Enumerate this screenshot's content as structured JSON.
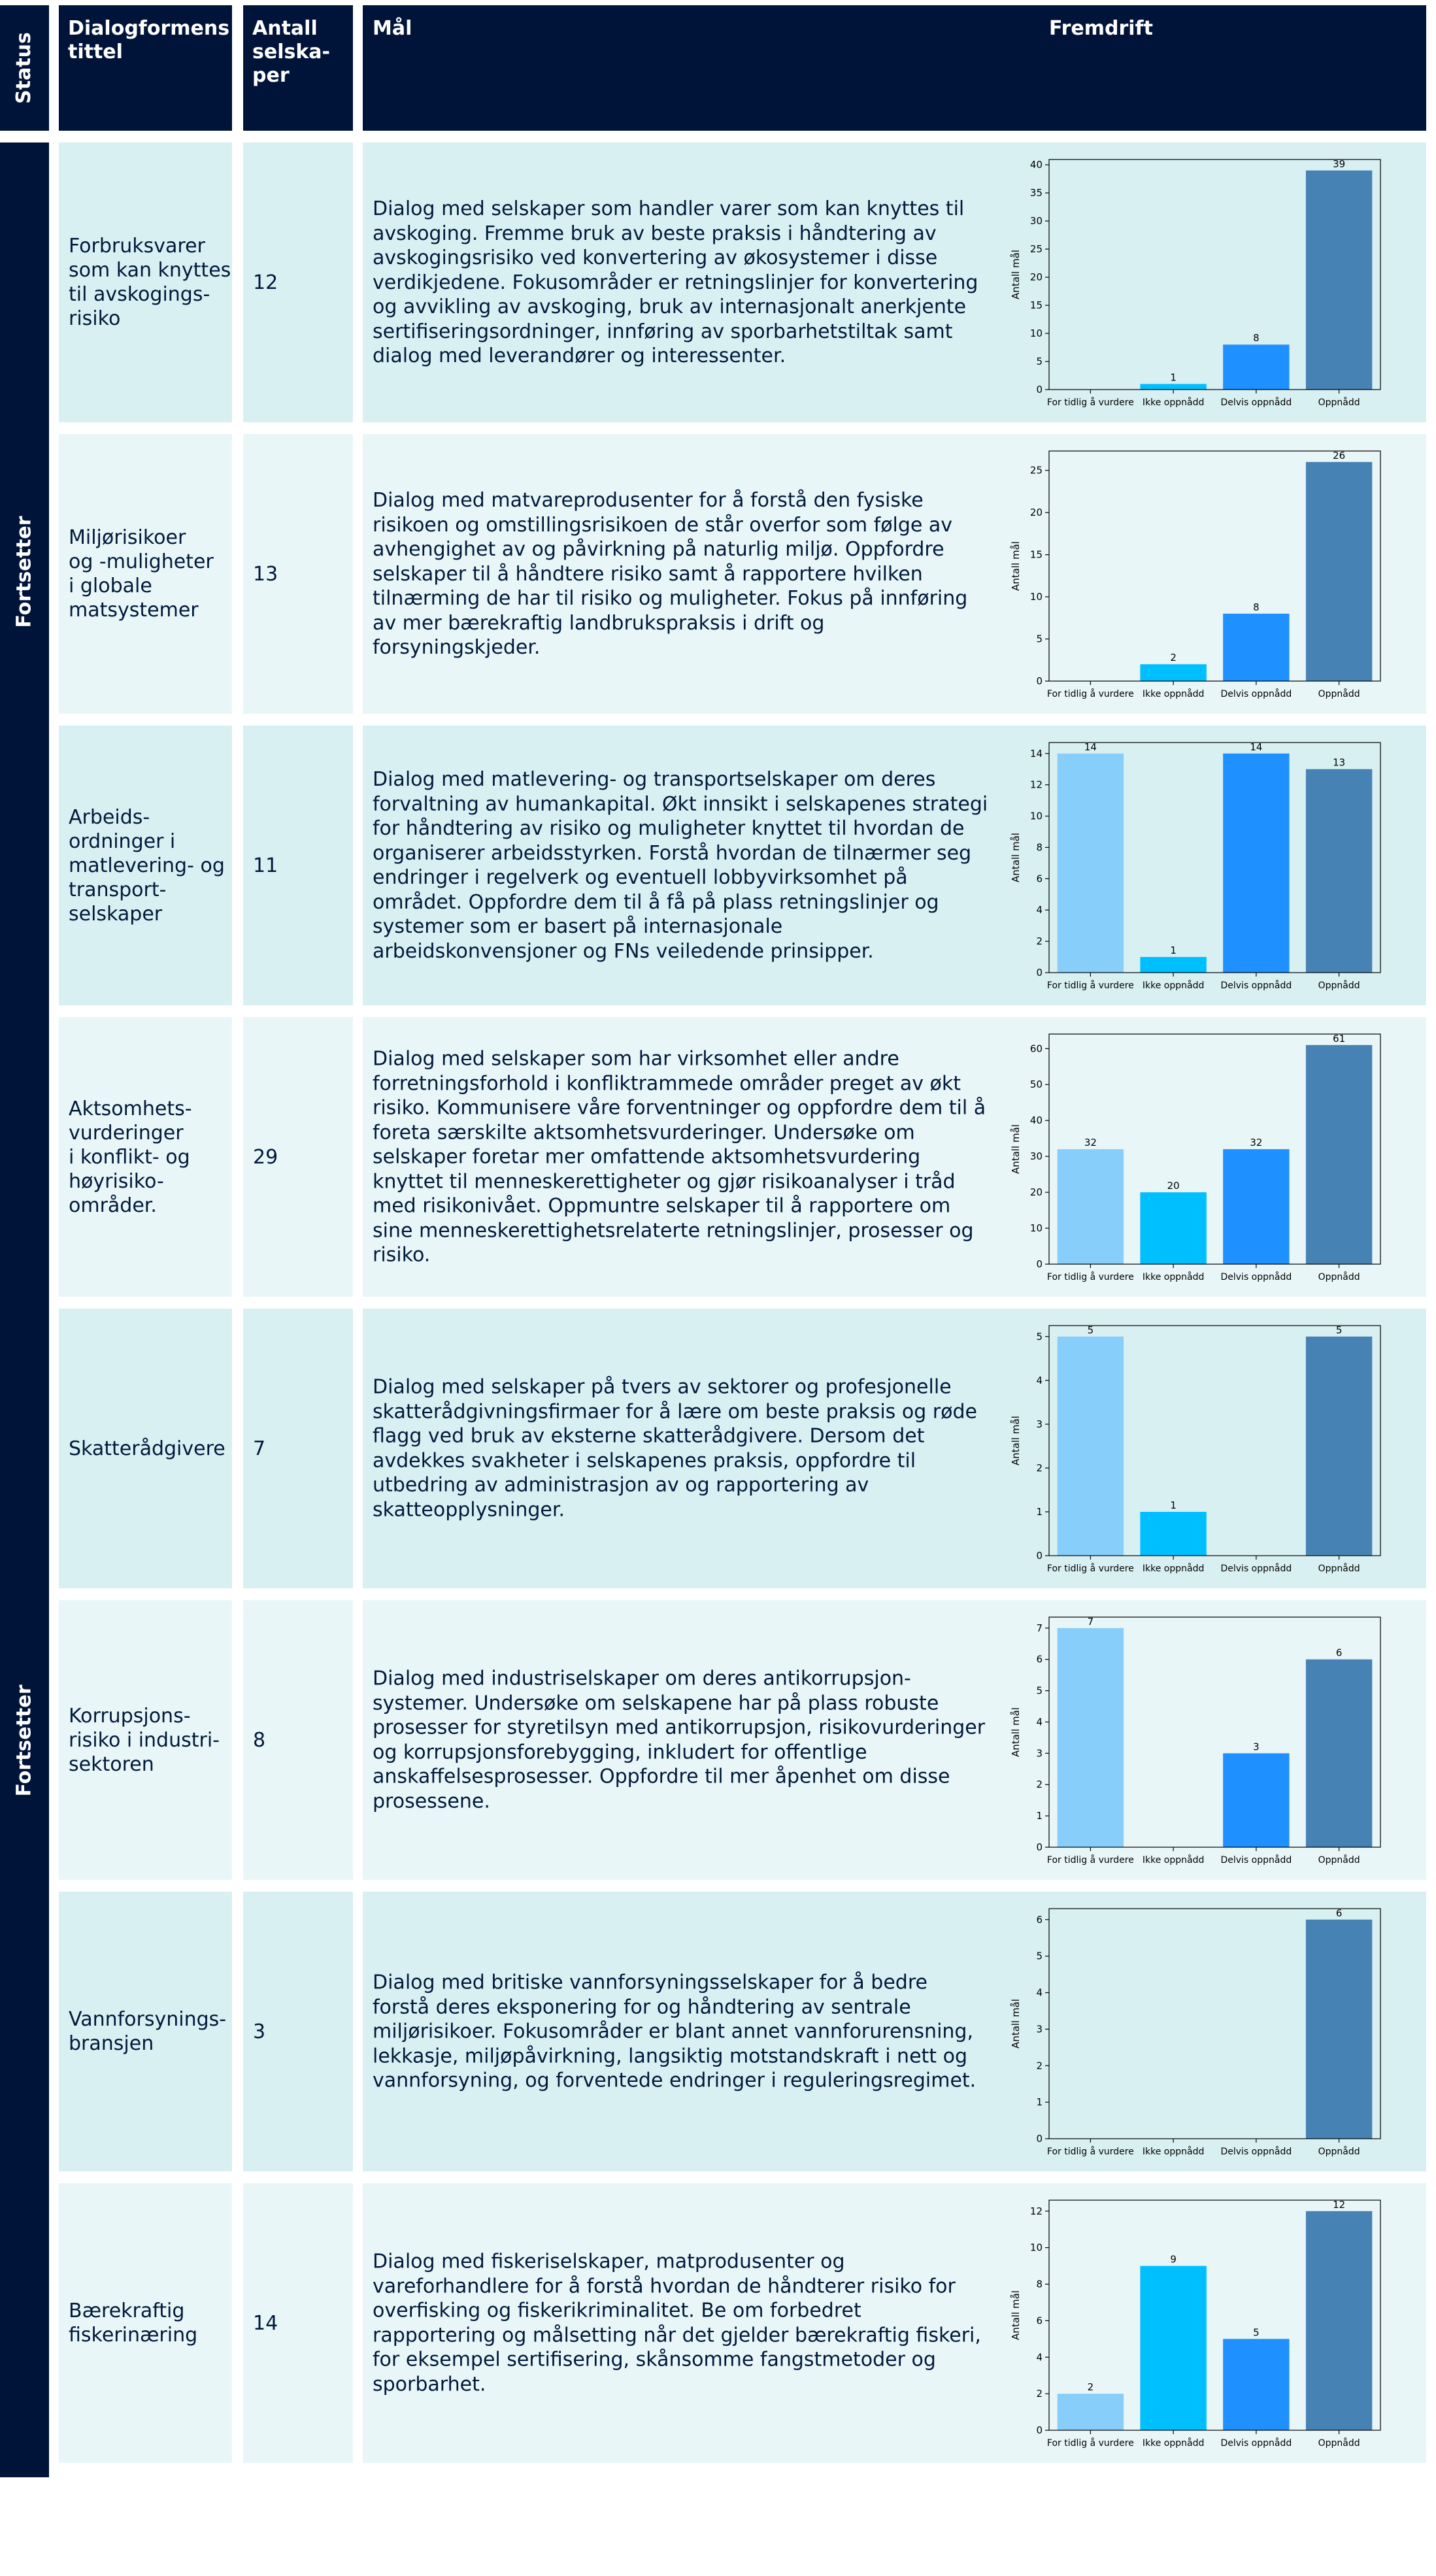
{
  "header": {
    "status": "Status",
    "title": "Dialogformens\ntittel",
    "count": "Antall\nselska-\nper",
    "goal": "Mål",
    "progress": "Fremdrift"
  },
  "status_labels": [
    "Fortsetter",
    "Fortsetter"
  ],
  "chart_colors": [
    "#87cefa",
    "#00bfff",
    "#1e90ff",
    "#4682b4"
  ],
  "rows": [
    {
      "title": "Forbruksvarer\nsom kan knyttes\ntil avskogings-\nrisiko",
      "count": 12,
      "goal": "Dialog med selskaper som handler varer som kan knyttes til avskoging. Fremme bruk av beste praksis i håndtering av avskogingsrisiko ved konvertering av økosystemer i disse verdikjedene. Fokusområder er retningslinjer for konvertering og avvikling av avskoging, bruk av internasjonalt anerkjente sertifiseringsordninger, innføring av sporbarhetstiltak samt dialog med leverandører og interessenter.",
      "chart": {
        "type": "bar",
        "ylabel": "Antall mål",
        "categories": [
          "For tidlig å vurdere",
          "Ikke oppnådd",
          "Delvis oppnådd",
          "Oppnådd"
        ],
        "values": [
          0,
          1,
          8,
          39
        ],
        "ylim": [
          0,
          40.95
        ],
        "yticks": [
          0,
          5,
          10,
          15,
          20,
          25,
          30,
          35,
          40
        ]
      }
    },
    {
      "title": "Miljørisikoer\nog -muligheter\ni globale\nmatsystemer",
      "count": 13,
      "goal": "Dialog med matvareprodusenter for å forstå den fysiske risikoen og omstillingsrisikoen de står overfor som følge av avhengighet av og påvirkning på naturlig miljø. Oppfordre selskaper til å håndtere risiko samt å rapportere hvilken tilnærming de har til risiko og muligheter. Fokus på innføring av mer bærekraftig landbrukspraksis i drift og forsyningskjeder.",
      "chart": {
        "type": "bar",
        "ylabel": "Antall mål",
        "categories": [
          "For tidlig å vurdere",
          "Ikke oppnådd",
          "Delvis oppnådd",
          "Oppnådd"
        ],
        "values": [
          0,
          2,
          8,
          26
        ],
        "ylim": [
          0,
          27.3
        ],
        "yticks": [
          0,
          5,
          10,
          15,
          20,
          25
        ]
      }
    },
    {
      "title": "Arbeids-\nordninger i\nmatlevering- og\ntransport-\nselskaper",
      "count": 11,
      "goal": "Dialog med matlevering- og transportselskaper om deres forvaltning av humankapital. Økt innsikt i selskapenes strategi for håndtering av risiko og muligheter knyttet til hvordan de organiserer arbeidsstyrken. Forstå hvordan de tilnærmer seg endringer i regelverk og eventuell lobbyvirksomhet på området. Oppfordre dem til å få på plass retningslinjer og systemer som er basert på internasjonale arbeidskonvensjoner og FNs veiledende prinsipper.",
      "chart": {
        "type": "bar",
        "ylabel": "Antall mål",
        "categories": [
          "For tidlig å vurdere",
          "Ikke oppnådd",
          "Delvis oppnådd",
          "Oppnådd"
        ],
        "values": [
          14,
          1,
          14,
          13
        ],
        "ylim": [
          0,
          14.7
        ],
        "yticks": [
          0,
          2,
          4,
          6,
          8,
          10,
          12,
          14
        ]
      }
    },
    {
      "title": "Aktsomhets-\nvurderinger\ni konflikt- og\nhøyrisiko-\nområder.",
      "count": 29,
      "goal": "Dialog med selskaper som har virksomhet eller andre forretningsforhold i konfliktrammede områder preget av økt risiko. Kommunisere våre forventninger og oppfordre dem til å foreta særskilte aktsomhetsvurderinger. Undersøke om selskaper foretar mer omfattende aktsomhetsvurdering knyttet til menneskerettigheter og gjør risikoanalyser i tråd med risikonivået. Oppmuntre selskaper til å rapportere om sine menneskerettighetsrelaterte retningslinjer, prosesser og risiko.",
      "chart": {
        "type": "bar",
        "ylabel": "Antall mål",
        "categories": [
          "For tidlig å vurdere",
          "Ikke oppnådd",
          "Delvis oppnådd",
          "Oppnådd"
        ],
        "values": [
          32,
          20,
          32,
          61
        ],
        "ylim": [
          0,
          64.05
        ],
        "yticks": [
          0,
          10,
          20,
          30,
          40,
          50,
          60
        ]
      }
    },
    {
      "title": "Skatterådgivere",
      "count": 7,
      "goal": "Dialog med selskaper på tvers av sektorer og profesjonelle skatterådgivningsfirmaer for å lære om beste praksis og røde flagg ved bruk av eksterne skatterådgivere. Dersom det avdekkes svakheter i selskapenes praksis, oppfordre til utbedring av administrasjon av og rapportering av skatteopplysninger.",
      "chart": {
        "type": "bar",
        "ylabel": "Antall mål",
        "categories": [
          "For tidlig å vurdere",
          "Ikke oppnådd",
          "Delvis oppnådd",
          "Oppnådd"
        ],
        "values": [
          5,
          1,
          0,
          5
        ],
        "ylim": [
          0,
          5.25
        ],
        "yticks": [
          0,
          1,
          2,
          3,
          4,
          5
        ]
      }
    },
    {
      "title": "Korrupsjons-\nrisiko i industri-\nsektoren",
      "count": 8,
      "goal": "Dialog med industriselskaper om deres antikorrupsjon-systemer. Undersøke om selskapene har på plass robuste prosesser for styretilsyn med antikorrupsjon, risikovurderinger og korrupsjonsforebygging, inkludert for offentlige anskaffelsesprosesser. Oppfordre til mer åpenhet om disse prosessene.",
      "chart": {
        "type": "bar",
        "ylabel": "Antall mål",
        "categories": [
          "For tidlig å vurdere",
          "Ikke oppnådd",
          "Delvis oppnådd",
          "Oppnådd"
        ],
        "values": [
          7,
          0,
          3,
          6
        ],
        "ylim": [
          0,
          7.35
        ],
        "yticks": [
          0,
          1,
          2,
          3,
          4,
          5,
          6,
          7
        ]
      }
    },
    {
      "title": "Vannforsynings-\nbransjen",
      "count": 3,
      "goal": "Dialog med britiske vannforsyningsselskaper for å bedre forstå deres eksponering for og håndtering av sentrale miljørisikoer. Fokusområder er blant annet vannforurensning, lekkasje, miljøpåvirkning, langsiktig motstandskraft i nett og vannforsyning, og forventede endringer i reguleringsregimet.",
      "chart": {
        "type": "bar",
        "ylabel": "Antall mål",
        "categories": [
          "For tidlig å vurdere",
          "Ikke oppnådd",
          "Delvis oppnådd",
          "Oppnådd"
        ],
        "values": [
          0,
          0,
          0,
          6
        ],
        "ylim": [
          0,
          6.3
        ],
        "yticks": [
          0,
          1,
          2,
          3,
          4,
          5,
          6
        ]
      }
    },
    {
      "title": "Bærekraftig\nfiskerinæring",
      "count": 14,
      "goal": "Dialog med fiskeriselskaper, matprodusenter og vareforhandlere for å forstå hvordan de håndterer risiko for overfisking og fiskerikriminalitet. Be om forbedret rapportering og målsetting når det gjelder bærekraftig fiskeri, for eksempel sertifisering, skånsomme fangstmetoder og sporbarhet.",
      "chart": {
        "type": "bar",
        "ylabel": "Antall mål",
        "categories": [
          "For tidlig å vurdere",
          "Ikke oppnådd",
          "Delvis oppnådd",
          "Oppnådd"
        ],
        "values": [
          2,
          9,
          5,
          12
        ],
        "ylim": [
          0,
          12.6
        ],
        "yticks": [
          0,
          2,
          4,
          6,
          8,
          10,
          12
        ]
      }
    }
  ]
}
